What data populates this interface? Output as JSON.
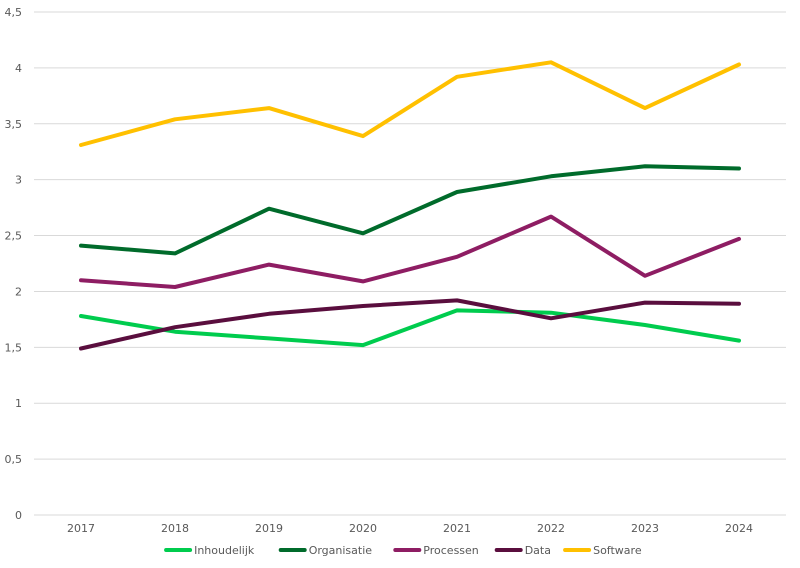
{
  "chart_data": {
    "type": "line",
    "title": "",
    "xlabel": "",
    "ylabel": "",
    "categories": [
      "2017",
      "2018",
      "2019",
      "2020",
      "2021",
      "2022",
      "2023",
      "2024"
    ],
    "ylim": [
      0,
      4.5
    ],
    "yticks": [
      0,
      0.5,
      1,
      1.5,
      2,
      2.5,
      3,
      3.5,
      4,
      4.5
    ],
    "ytick_labels": [
      "0",
      "0,5",
      "1",
      "1,5",
      "2",
      "2,5",
      "3",
      "3,5",
      "4",
      "4,5"
    ],
    "grid": true,
    "legend_position": "bottom",
    "series": [
      {
        "name": "Inhoudelijk",
        "color": "#00CC4E",
        "values": [
          1.78,
          1.64,
          1.58,
          1.52,
          1.83,
          1.81,
          1.7,
          1.56
        ]
      },
      {
        "name": "Organisatie",
        "color": "#006B2B",
        "values": [
          2.41,
          2.34,
          2.74,
          2.52,
          2.89,
          3.03,
          3.12,
          3.1
        ]
      },
      {
        "name": "Processen",
        "color": "#8E1D63",
        "values": [
          2.1,
          2.04,
          2.24,
          2.09,
          2.31,
          2.67,
          2.14,
          2.47
        ]
      },
      {
        "name": "Data",
        "color": "#5A0E3E",
        "values": [
          1.49,
          1.68,
          1.8,
          1.87,
          1.92,
          1.76,
          1.9,
          1.89
        ]
      },
      {
        "name": "Software",
        "color": "#FFC000",
        "values": [
          3.31,
          3.54,
          3.64,
          3.39,
          3.92,
          4.05,
          3.64,
          4.03
        ]
      }
    ]
  }
}
